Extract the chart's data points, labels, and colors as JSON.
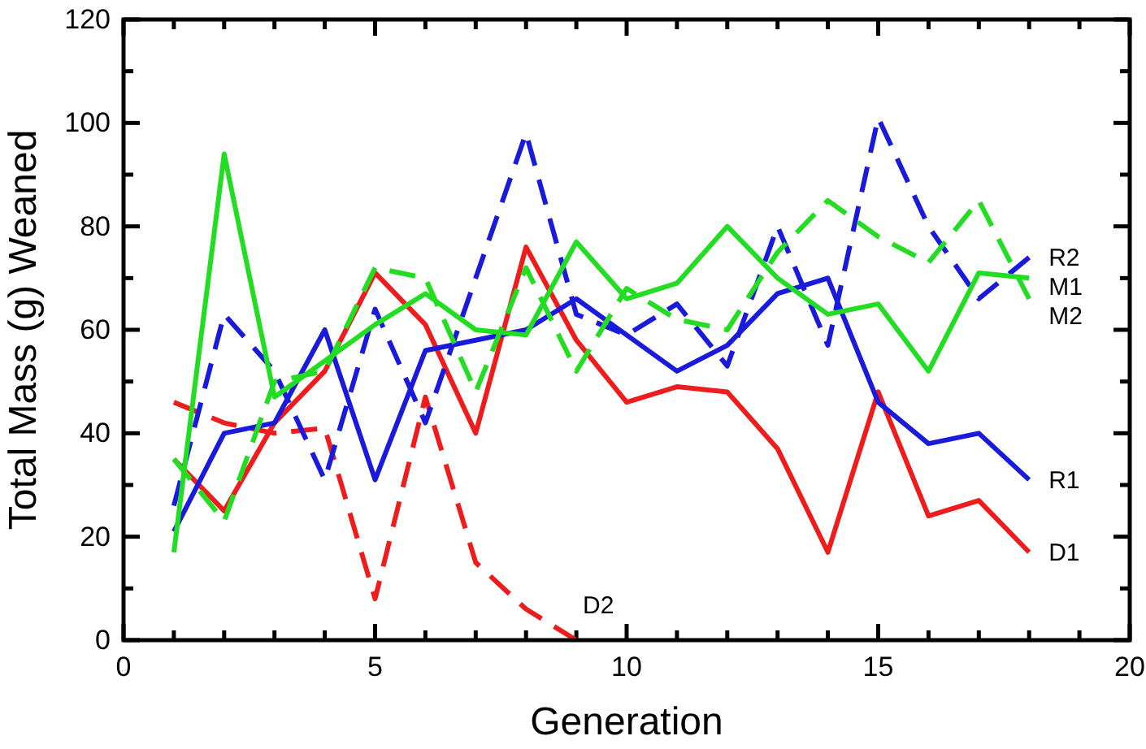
{
  "chart_data": {
    "type": "line",
    "xlabel": "Generation",
    "ylabel": "Total Mass (g) Weaned",
    "xlim": [
      0,
      20
    ],
    "ylim": [
      0,
      120
    ],
    "xticks": [
      0,
      {
        "value": 1,
        "label": null
      },
      {
        "value": 2,
        "label": null
      },
      {
        "value": 3,
        "label": null
      },
      {
        "value": 4,
        "label": null
      },
      5,
      {
        "value": 6,
        "label": null
      },
      {
        "value": 7,
        "label": null
      },
      {
        "value": 8,
        "label": null
      },
      {
        "value": 9,
        "label": null
      },
      10,
      {
        "value": 11,
        "label": null
      },
      {
        "value": 12,
        "label": null
      },
      {
        "value": 13,
        "label": null
      },
      {
        "value": 14,
        "label": null
      },
      15,
      {
        "value": 16,
        "label": null
      },
      {
        "value": 17,
        "label": null
      },
      {
        "value": 18,
        "label": null
      },
      {
        "value": 19,
        "label": null
      },
      20
    ],
    "yticks": [
      0,
      {
        "value": 10,
        "label": null
      },
      20,
      {
        "value": 30,
        "label": null
      },
      40,
      {
        "value": 50,
        "label": null
      },
      60,
      {
        "value": 70,
        "label": null
      },
      80,
      {
        "value": 90,
        "label": null
      },
      100,
      {
        "value": 110,
        "label": null
      },
      120
    ],
    "grid": false,
    "legend": false,
    "marker": "none",
    "series": [
      {
        "name": "D1",
        "color": "#ee1c1c",
        "line_style": "solid",
        "x": [
          1,
          2,
          3,
          4,
          5,
          6,
          7,
          8,
          9,
          10,
          11,
          12,
          13,
          14,
          15,
          16,
          17,
          18
        ],
        "values": [
          35,
          25,
          42,
          52,
          71,
          61,
          40,
          76,
          58,
          46,
          49,
          48,
          37,
          17,
          48,
          24,
          27,
          17
        ]
      },
      {
        "name": "D2",
        "color": "#ee1c1c",
        "line_style": "dashed",
        "x": [
          1,
          2,
          3,
          4,
          5,
          6,
          7,
          8,
          9
        ],
        "values": [
          46,
          42,
          40,
          41,
          8,
          47,
          15,
          6,
          0
        ]
      },
      {
        "name": "R1",
        "color": "#1a1adc",
        "line_style": "solid",
        "x": [
          1,
          2,
          3,
          4,
          5,
          6,
          7,
          8,
          9,
          10,
          11,
          12,
          13,
          14,
          15,
          16,
          17,
          18
        ],
        "values": [
          21,
          40,
          42,
          60,
          31,
          56,
          58,
          60,
          66,
          59,
          52,
          57,
          67,
          70,
          46,
          38,
          40,
          31
        ]
      },
      {
        "name": "R2",
        "color": "#1a1adc",
        "line_style": "dashed",
        "x": [
          1,
          2,
          3,
          4,
          5,
          6,
          7,
          8,
          9,
          10,
          11,
          12,
          13,
          14,
          15,
          16,
          17,
          18
        ],
        "values": [
          26,
          63,
          52,
          31,
          64,
          42,
          70,
          98,
          63,
          59,
          65,
          53,
          80,
          57,
          101,
          80,
          66,
          74
        ]
      },
      {
        "name": "M1",
        "color": "#22dd22",
        "line_style": "solid",
        "x": [
          1,
          2,
          3,
          4,
          5,
          6,
          7,
          8,
          9,
          10,
          11,
          12,
          13,
          14,
          15,
          16,
          17,
          18
        ],
        "values": [
          17,
          94,
          47,
          54,
          61,
          67,
          60,
          59,
          77,
          66,
          69,
          80,
          70,
          63,
          65,
          52,
          71,
          70
        ]
      },
      {
        "name": "M2",
        "color": "#22dd22",
        "line_style": "dashed",
        "x": [
          1,
          2,
          3,
          4,
          5,
          6,
          7,
          8,
          9,
          10,
          11,
          12,
          13,
          14,
          15,
          16,
          17,
          18
        ],
        "values": [
          35,
          23,
          50,
          52,
          72,
          70,
          48,
          72,
          52,
          68,
          62,
          60,
          75,
          85,
          78,
          73,
          85,
          66
        ]
      }
    ]
  }
}
